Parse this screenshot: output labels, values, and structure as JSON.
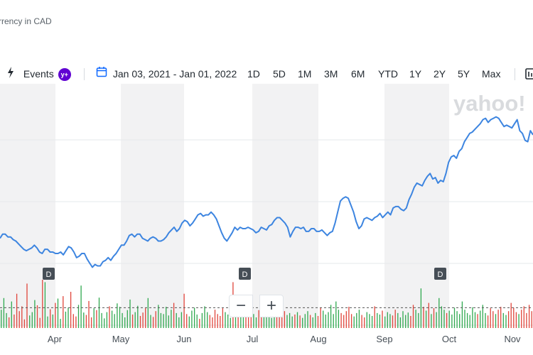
{
  "header": {
    "currency_note": "rrency in CAD"
  },
  "toolbar": {
    "events_label": "Events",
    "events_badge": "y+",
    "date_range": "Jan 03, 2021 - Jan 01, 2022",
    "ranges": [
      "1D",
      "5D",
      "1M",
      "3M",
      "6M",
      "YTD",
      "1Y",
      "2Y",
      "5Y",
      "Max"
    ]
  },
  "brand": {
    "watermark": "yahoo!"
  },
  "chart_data": {
    "type": "line",
    "x_tick_labels": [
      "Apr",
      "May",
      "Jun",
      "Jul",
      "Aug",
      "Sep",
      "Oct",
      "Nov"
    ],
    "event_markers": [
      "D",
      "D",
      "D"
    ],
    "series": [
      {
        "values": [
          0.63,
          0.66,
          0.66,
          0.64,
          0.64,
          0.62,
          0.61,
          0.59,
          0.57,
          0.55,
          0.54,
          0.55,
          0.56,
          0.58,
          0.56,
          0.53,
          0.52,
          0.55,
          0.55,
          0.53,
          0.53,
          0.52,
          0.52,
          0.53,
          0.51,
          0.54,
          0.57,
          0.56,
          0.53,
          0.49,
          0.5,
          0.52,
          0.52,
          0.48,
          0.45,
          0.42,
          0.44,
          0.43,
          0.43,
          0.46,
          0.47,
          0.49,
          0.47,
          0.5,
          0.52,
          0.55,
          0.58,
          0.58,
          0.61,
          0.65,
          0.66,
          0.64,
          0.66,
          0.66,
          0.63,
          0.62,
          0.61,
          0.63,
          0.64,
          0.63,
          0.61,
          0.61,
          0.62,
          0.64,
          0.67,
          0.69,
          0.71,
          0.68,
          0.7,
          0.74,
          0.76,
          0.75,
          0.72,
          0.74,
          0.77,
          0.8,
          0.81,
          0.79,
          0.8,
          0.8,
          0.82,
          0.8,
          0.77,
          0.72,
          0.67,
          0.63,
          0.61,
          0.64,
          0.67,
          0.71,
          0.69,
          0.71,
          0.7,
          0.7,
          0.71,
          0.7,
          0.69,
          0.67,
          0.68,
          0.71,
          0.7,
          0.69,
          0.72,
          0.73,
          0.76,
          0.78,
          0.78,
          0.76,
          0.74,
          0.71,
          0.64,
          0.68,
          0.71,
          0.71,
          0.7,
          0.71,
          0.68,
          0.68,
          0.7,
          0.7,
          0.68,
          0.68,
          0.69,
          0.67,
          0.65,
          0.67,
          0.68,
          0.74,
          0.82,
          0.9,
          0.92,
          0.93,
          0.92,
          0.87,
          0.82,
          0.75,
          0.7,
          0.72,
          0.77,
          0.78,
          0.77,
          0.76,
          0.78,
          0.79,
          0.81,
          0.78,
          0.8,
          0.82,
          0.8,
          0.85,
          0.86,
          0.86,
          0.84,
          0.83,
          0.85,
          0.91,
          0.95,
          1.0,
          1.03,
          1.02,
          1.01,
          1.05,
          1.08,
          1.1,
          1.06,
          1.07,
          1.03,
          1.05,
          1.04,
          1.1,
          1.18,
          1.22,
          1.23,
          1.21,
          1.26,
          1.28,
          1.33,
          1.36,
          1.39,
          1.4,
          1.42,
          1.44,
          1.46,
          1.49,
          1.5,
          1.47,
          1.49,
          1.5,
          1.51,
          1.5,
          1.47,
          1.44,
          1.45,
          1.44,
          1.43,
          1.46,
          1.49,
          1.41,
          1.39,
          1.34,
          1.33,
          1.41,
          1.38
        ]
      }
    ],
    "volume": {
      "avg_line_value": 0.42,
      "values": [
        0.38,
        0.62,
        0.31,
        0.22,
        0.55,
        0.28,
        0.71,
        0.35,
        0.45,
        0.18,
        0.92,
        0.26,
        0.33,
        0.58,
        0.47,
        0.21,
        1.0,
        0.95,
        0.24,
        0.39,
        0.28,
        0.52,
        0.61,
        0.19,
        0.66,
        0.34,
        0.42,
        0.75,
        0.29,
        0.24,
        0.48,
        0.88,
        0.32,
        0.27,
        0.56,
        0.22,
        0.41,
        0.37,
        0.63,
        0.31,
        0.2,
        0.33,
        0.45,
        0.36,
        0.29,
        0.51,
        0.44,
        0.31,
        0.22,
        0.37,
        0.59,
        0.28,
        0.33,
        0.46,
        0.25,
        0.32,
        0.41,
        0.62,
        0.27,
        0.23,
        0.35,
        0.48,
        0.31,
        0.29,
        0.44,
        0.26,
        0.38,
        0.52,
        0.31,
        0.22,
        0.33,
        0.71,
        0.29,
        0.24,
        0.36,
        0.42,
        0.28,
        0.19,
        0.31,
        0.45,
        0.33,
        0.27,
        0.22,
        0.38,
        0.29,
        0.25,
        0.41,
        0.33,
        0.28,
        0.21,
        0.95,
        0.52,
        0.33,
        0.28,
        0.36,
        0.25,
        0.31,
        0.45,
        0.29,
        0.22,
        0.37,
        0.42,
        0.28,
        0.33,
        0.26,
        0.21,
        0.31,
        0.38,
        0.29,
        0.22,
        0.35,
        0.27,
        0.31,
        0.24,
        0.28,
        0.33,
        0.26,
        0.21,
        0.29,
        0.35,
        0.27,
        0.22,
        0.31,
        0.25,
        0.42,
        0.36,
        0.28,
        0.33,
        0.48,
        0.29,
        0.55,
        0.38,
        0.31,
        0.27,
        0.35,
        0.44,
        0.29,
        0.24,
        0.31,
        0.38,
        0.27,
        0.22,
        0.33,
        0.29,
        0.25,
        0.45,
        0.31,
        0.28,
        0.36,
        0.24,
        0.33,
        0.29,
        0.26,
        0.38,
        0.31,
        0.22,
        0.35,
        0.27,
        0.32,
        0.25,
        0.48,
        0.38,
        0.31,
        0.82,
        0.44,
        0.36,
        0.52,
        0.29,
        0.41,
        0.33,
        0.62,
        0.45,
        0.38,
        0.31,
        0.36,
        0.28,
        0.42,
        0.35,
        0.29,
        0.55,
        0.38,
        0.31,
        0.27,
        0.43,
        0.33,
        0.29,
        0.36,
        0.48,
        0.31,
        0.26,
        0.41,
        0.35,
        0.29,
        0.38,
        0.44,
        0.31,
        0.27,
        0.35,
        0.52,
        0.42,
        0.33,
        0.29,
        0.38,
        0.45,
        0.31,
        0.48,
        0.35
      ],
      "colors_up": "#2fa84f",
      "colors_down": "#e0443a"
    }
  },
  "colors": {
    "line": "#3d85e0",
    "band": "#f2f2f3",
    "grid": "#e6e8eb",
    "accent": "#0f69ff",
    "brand": "#6001d2"
  }
}
